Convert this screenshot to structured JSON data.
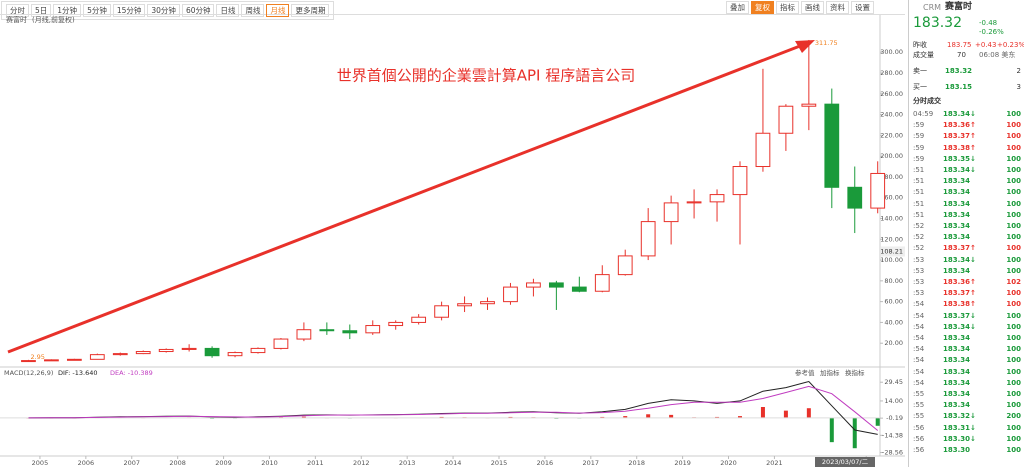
{
  "toolbar": {
    "left": [
      "分时",
      "5日",
      "1分钟",
      "5分钟",
      "15分钟",
      "30分钟",
      "60分钟",
      "日线",
      "周线",
      "月线",
      "更多周期"
    ],
    "active": 9,
    "right": [
      "叠加",
      "复权",
      "指标",
      "画线",
      "资料",
      "设置"
    ],
    "highlight": 1
  },
  "chart_data": [
    {
      "type": "candlestick",
      "title": "赛富时",
      "subtitle": "(月线,前复权)",
      "annotation": "世界首個公開的企業雲計算API 程序語言公司",
      "high_label": 311.75,
      "low_label": 2.95,
      "marker": 108.21,
      "date_label": "2023/03/07/二",
      "up_color": "#e8312a",
      "down_color": "#1a9a3a",
      "x": [
        2004.75,
        2005.25,
        2005.75,
        2006.25,
        2006.75,
        2007.25,
        2007.75,
        2008.25,
        2008.75,
        2009.25,
        2009.75,
        2010.25,
        2010.75,
        2011.25,
        2011.75,
        2012.25,
        2012.75,
        2013.25,
        2013.75,
        2014.25,
        2014.75,
        2015.25,
        2015.75,
        2016.25,
        2016.75,
        2017.25,
        2017.75,
        2018.25,
        2018.75,
        2019.25,
        2019.75,
        2020.25,
        2020.75,
        2021.25,
        2021.75,
        2022.25,
        2022.75,
        2023.25
      ],
      "open": [
        3,
        3.3,
        4,
        4.5,
        9,
        10,
        12,
        14,
        15,
        8,
        11,
        15,
        24,
        33,
        32,
        30,
        37,
        40,
        45,
        56,
        58,
        60,
        74,
        78,
        74,
        70,
        86,
        104,
        137,
        155,
        156,
        163,
        190,
        222,
        248,
        250,
        170,
        150
      ],
      "high": [
        4,
        4.5,
        5,
        10,
        11,
        13,
        15,
        19,
        17,
        12,
        16,
        25,
        40,
        40,
        38,
        42,
        42,
        48,
        60,
        65,
        64,
        78,
        82,
        80,
        84,
        95,
        110,
        150,
        162,
        168,
        168,
        195,
        284,
        250,
        311.75,
        265,
        190,
        195
      ],
      "low": [
        2.95,
        3,
        3.8,
        4.3,
        8,
        9.5,
        11,
        12,
        6,
        6.5,
        10,
        14,
        22,
        28,
        24,
        28,
        33,
        38,
        42,
        50,
        52,
        57,
        65,
        52,
        69,
        69,
        85,
        100,
        115,
        140,
        137,
        115,
        185,
        205,
        225,
        150,
        126,
        145
      ],
      "close": [
        3.3,
        4,
        4.5,
        9,
        10,
        12,
        14,
        15,
        8,
        11,
        15,
        24,
        33,
        32,
        30,
        37,
        40,
        45,
        56,
        58,
        60,
        74,
        78,
        74,
        70,
        86,
        104,
        137,
        155,
        156,
        163,
        190,
        222,
        248,
        250,
        170,
        150,
        183.32
      ],
      "xlim": [
        2004.13,
        2023.3
      ],
      "xticks": [
        2005,
        2006,
        2007,
        2008,
        2009,
        2010,
        2011,
        2012,
        2013,
        2014,
        2015,
        2016,
        2017,
        2018,
        2019,
        2020,
        2021,
        2023
      ],
      "ylim": [
        0,
        330
      ],
      "yticks": [
        {
          "value": 20,
          "label": "20.00"
        },
        {
          "value": 40,
          "label": "40.00"
        },
        {
          "value": 60,
          "label": "60.00"
        },
        {
          "value": 80,
          "label": "80.00"
        },
        {
          "value": 100,
          "label": "100.00"
        },
        {
          "value": 120,
          "label": "120.00"
        },
        {
          "value": 140,
          "label": "140.00"
        },
        {
          "value": 160,
          "label": "160.00"
        },
        {
          "value": 180,
          "label": "180.00"
        },
        {
          "value": 200,
          "label": "200.00"
        },
        {
          "value": 220,
          "label": "220.00"
        },
        {
          "value": 240,
          "label": "240.00"
        },
        {
          "value": 260,
          "label": "260.00"
        },
        {
          "value": 280,
          "label": "280.00"
        },
        {
          "value": 300,
          "label": "300.00"
        }
      ]
    },
    {
      "type": "macd",
      "title": "MACD(12,26,9)",
      "buttons": [
        "参考值",
        "加指标",
        "换指标"
      ],
      "x": [
        2004.75,
        2005.25,
        2005.75,
        2006.25,
        2006.75,
        2007.25,
        2007.75,
        2008.25,
        2008.75,
        2009.25,
        2009.75,
        2010.25,
        2010.75,
        2011.25,
        2011.75,
        2012.25,
        2012.75,
        2013.25,
        2013.75,
        2014.25,
        2014.75,
        2015.25,
        2015.75,
        2016.25,
        2016.75,
        2017.25,
        2017.75,
        2018.25,
        2018.75,
        2019.25,
        2019.75,
        2020.25,
        2020.75,
        2021.25,
        2021.75,
        2022.25,
        2022.75,
        2023.25
      ],
      "hist": [
        0,
        0,
        0,
        0.3,
        0.3,
        0.2,
        0.3,
        0.4,
        -0.6,
        -0.4,
        0.3,
        0.6,
        1,
        0.2,
        -0.3,
        0.3,
        0.2,
        0.3,
        0.8,
        0.5,
        0.2,
        0.8,
        0.5,
        -0.6,
        -0.4,
        0.8,
        1.5,
        3,
        2.5,
        0.5,
        0.8,
        1.5,
        9,
        6,
        8,
        -20,
        -25,
        -6.502
      ],
      "series": [
        {
          "name": "DIF: -13.640",
          "color": "#222222",
          "values": [
            0,
            0.1,
            0.2,
            0.6,
            0.9,
            1.1,
            1.3,
            1.5,
            0.8,
            0.6,
            0.9,
            1.4,
            2.3,
            2.5,
            2.3,
            2.5,
            2.7,
            3,
            3.6,
            4,
            4,
            4.6,
            5,
            4.3,
            3.8,
            5,
            7,
            12,
            15,
            14,
            12,
            14,
            22,
            25,
            30,
            10,
            -10,
            -13.64
          ]
        },
        {
          "name": "DEA: -10.389",
          "color": "#c03cc0",
          "values": [
            0,
            0.05,
            0.1,
            0.4,
            0.7,
            0.9,
            1.1,
            1.3,
            1.1,
            0.8,
            0.7,
            1.1,
            1.8,
            2.3,
            2.4,
            2.4,
            2.6,
            2.8,
            3.2,
            3.7,
            3.9,
            4.2,
            4.7,
            4.6,
            4,
            4.4,
            5.5,
            8,
            11,
            13,
            13,
            13,
            16,
            21,
            26,
            20,
            5,
            -10.389
          ]
        }
      ],
      "ylim": [
        -30.6,
        35.4
      ],
      "yticks": [
        {
          "value": 29.45,
          "label": "29.45"
        },
        {
          "value": 14,
          "label": "14.00"
        },
        {
          "value": -0.19,
          "label": "-0.19"
        },
        {
          "value": -14.38,
          "label": "-14.38"
        },
        {
          "value": -28.56,
          "label": "-28.56"
        }
      ]
    }
  ],
  "quote": {
    "symbol": "CRM",
    "name": "赛富时",
    "price": "183.32",
    "change": "-0.48",
    "pct": "-0.26%",
    "prev_label": "昨收",
    "prev": "183.75",
    "ah_change": "+0.43",
    "ah_pct": "+0.23%",
    "vol_label": "成交量",
    "vol": "70",
    "time": "06:08 美东",
    "book": [
      [
        "卖一",
        "183.32",
        "2"
      ],
      [
        "买一",
        "183.15",
        "3"
      ]
    ],
    "trades_title": "分时成交",
    "trades": [
      [
        "04:59",
        "183.34↓",
        "100",
        "g"
      ],
      [
        ":59",
        "183.36↑",
        "100",
        "r"
      ],
      [
        ":59",
        "183.37↑",
        "100",
        "r"
      ],
      [
        ":59",
        "183.38↑",
        "100",
        "r"
      ],
      [
        ":59",
        "183.35↓",
        "100",
        "g"
      ],
      [
        ":51",
        "183.34↓",
        "100",
        "g"
      ],
      [
        ":51",
        "183.34",
        "100",
        "g"
      ],
      [
        ":51",
        "183.34",
        "100",
        "g"
      ],
      [
        ":51",
        "183.34",
        "100",
        "g"
      ],
      [
        ":51",
        "183.34",
        "100",
        "g"
      ],
      [
        ":52",
        "183.34",
        "100",
        "g"
      ],
      [
        ":52",
        "183.34",
        "100",
        "g"
      ],
      [
        ":52",
        "183.37↑",
        "100",
        "r"
      ],
      [
        ":53",
        "183.34↓",
        "100",
        "g"
      ],
      [
        ":53",
        "183.34",
        "100",
        "g"
      ],
      [
        ":53",
        "183.36↑",
        "102",
        "r"
      ],
      [
        ":53",
        "183.37↑",
        "100",
        "r"
      ],
      [
        ":54",
        "183.38↑",
        "100",
        "r"
      ],
      [
        ":54",
        "183.37↓",
        "100",
        "g"
      ],
      [
        ":54",
        "183.34↓",
        "100",
        "g"
      ],
      [
        ":54",
        "183.34",
        "100",
        "g"
      ],
      [
        ":54",
        "183.34",
        "100",
        "g"
      ],
      [
        ":54",
        "183.34",
        "100",
        "g"
      ],
      [
        ":54",
        "183.34",
        "100",
        "g"
      ],
      [
        ":54",
        "183.34",
        "100",
        "g"
      ],
      [
        ":55",
        "183.34",
        "100",
        "g"
      ],
      [
        ":55",
        "183.34",
        "100",
        "g"
      ],
      [
        ":55",
        "183.32↓",
        "200",
        "g"
      ],
      [
        ":56",
        "183.31↓",
        "100",
        "g"
      ],
      [
        ":56",
        "183.30↓",
        "100",
        "g"
      ],
      [
        ":56",
        "183.30",
        "100",
        "g"
      ]
    ]
  }
}
